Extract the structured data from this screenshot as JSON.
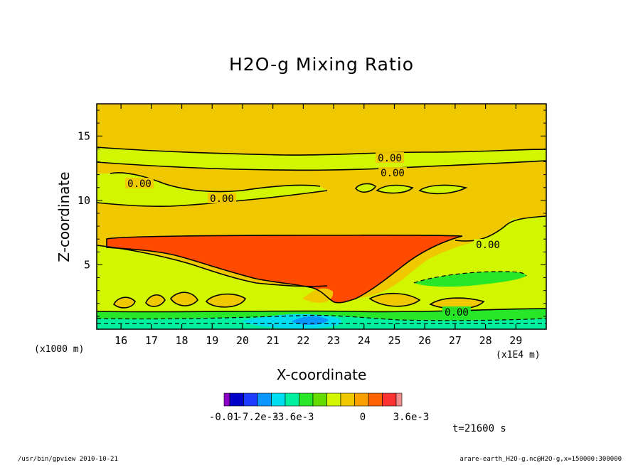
{
  "chart_data": {
    "type": "contour",
    "title": "H2O-g Mixing Ratio",
    "xlabel": "X-coordinate",
    "ylabel": "Z-coordinate",
    "x_unit_left": "(x1000 m)",
    "x_unit_right": "(x1E4 m)",
    "xlim": [
      15.2,
      30.0
    ],
    "ylim": [
      0,
      17.5
    ],
    "x_ticks": [
      16,
      17,
      18,
      19,
      20,
      21,
      22,
      23,
      24,
      25,
      26,
      27,
      28,
      29
    ],
    "y_ticks": [
      5,
      10,
      15
    ],
    "contour_labels": [
      "0.00",
      "0.00",
      "0.00",
      "0.00",
      "0.00",
      "0.00"
    ],
    "colorbar": {
      "colors": [
        "#8c00c8",
        "#0000c8",
        "#1e3cff",
        "#0a96ff",
        "#00dcf0",
        "#00f0a0",
        "#28e628",
        "#64dc00",
        "#d2f500",
        "#f0c800",
        "#faa000",
        "#ff6400",
        "#fa3232",
        "#f08c8c"
      ],
      "tick_labels": [
        "-0.01",
        "-7.2e-3",
        "-3.6e-3",
        "0",
        "3.6e-3"
      ]
    },
    "time_label": "t=21600 s"
  },
  "footer": {
    "left": "/usr/bin/gpview   2010-10-21",
    "right": "arare-earth_H2O-g.nc@H2O-g,x=150000:300000"
  }
}
